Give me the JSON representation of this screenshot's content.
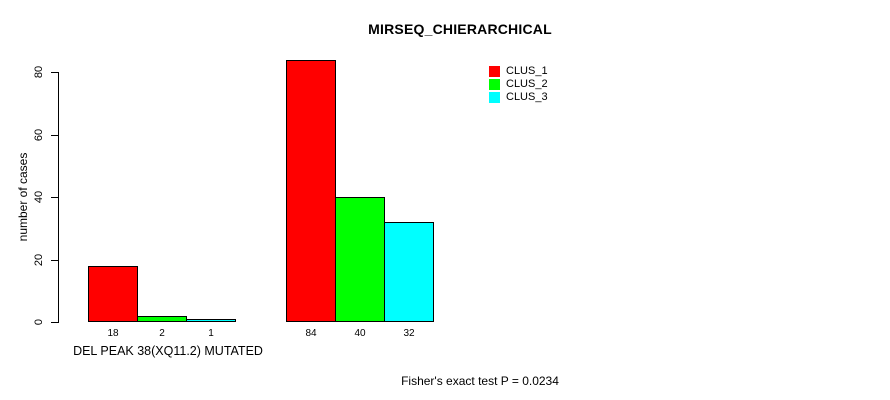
{
  "chart_data": {
    "type": "bar",
    "title": "MIRSEQ_CHIERARCHICAL",
    "ylabel": "number of cases",
    "xlabel": "",
    "ylim": [
      0,
      84
    ],
    "yticks": [
      0,
      20,
      40,
      60,
      80
    ],
    "grid": false,
    "bar_border_color": "#000000",
    "background_color": "#ffffff",
    "categories": [
      "DEL PEAK 38(XQ11.2) MUTATED",
      ""
    ],
    "series": [
      {
        "name": "CLUS_1",
        "color": "#ff0000",
        "values": [
          18,
          84
        ]
      },
      {
        "name": "CLUS_2",
        "color": "#00ff00",
        "values": [
          2,
          40
        ]
      },
      {
        "name": "CLUS_3",
        "color": "#00ffff",
        "values": [
          1,
          32
        ]
      }
    ],
    "bar_value_labels": [
      [
        18,
        2,
        1
      ],
      [
        84,
        40,
        32
      ]
    ],
    "legend": {
      "position": "top-right-inside",
      "entries": [
        "CLUS_1",
        "CLUS_2",
        "CLUS_3"
      ]
    },
    "footnote": "Fisher's exact test P = 0.0234"
  }
}
